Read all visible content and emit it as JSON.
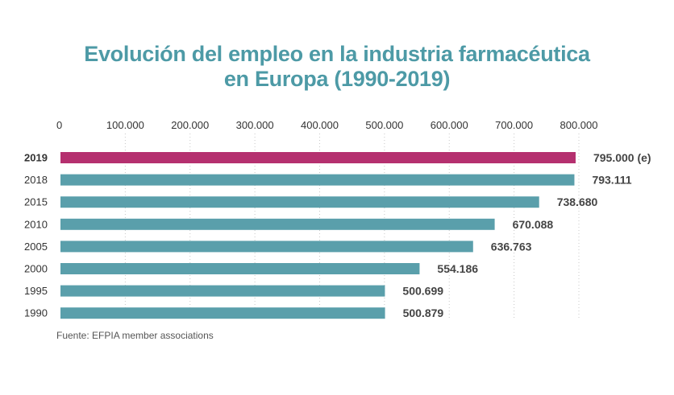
{
  "chart_data": {
    "type": "bar",
    "orientation": "horizontal",
    "title": "Evolución del empleo en la industria farmacéutica",
    "subtitle": "en Europa (1990-2019)",
    "categories": [
      "2019",
      "2018",
      "2015",
      "2010",
      "2005",
      "2000",
      "1995",
      "1990"
    ],
    "values": [
      795000,
      793111,
      738680,
      670088,
      636763,
      554186,
      500699,
      500879
    ],
    "value_labels": [
      "795.000 (e)",
      "793.111",
      "738.680",
      "670.088",
      "636.763",
      "554.186",
      "500.699",
      "500.879"
    ],
    "highlight_index": 0,
    "xlim": [
      0,
      800000
    ],
    "xticks": [
      "0",
      "100.000",
      "200.000",
      "300.000",
      "400.000",
      "500.000",
      "600.000",
      "700.000",
      "800.000"
    ],
    "xaxis_position": "top",
    "grid": true,
    "legend": "none",
    "source": "Fuente: EFPIA member associations"
  },
  "colors": {
    "bar": "#5a9fab",
    "highlight": "#b5306f",
    "title": "#4d9aa6",
    "grid": "#c8c8c8"
  }
}
